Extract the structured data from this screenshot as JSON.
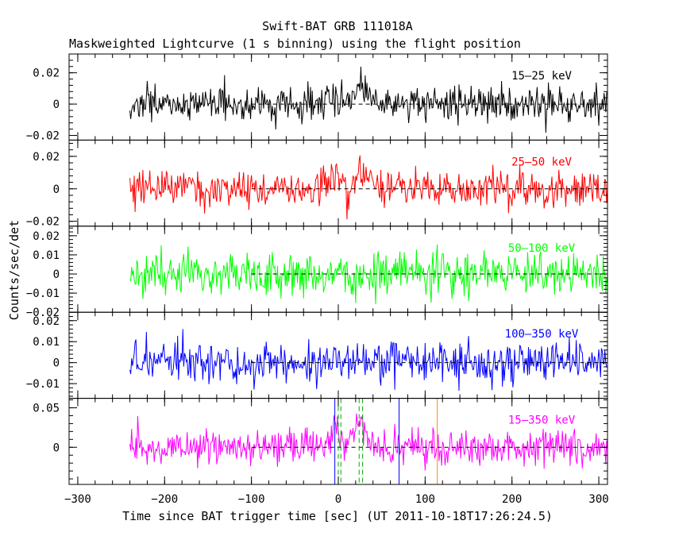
{
  "chart_data": {
    "type": "line",
    "title": "Swift-BAT GRB 111018A",
    "subtitle": "Maskweighted Lightcurve (1 s binning) using the flight position",
    "xlabel": "Time since BAT trigger time [sec] (UT 2011-10-18T17:26:24.5)",
    "ylabel": "Counts/sec/det",
    "xlim": [
      -310,
      310
    ],
    "data_range": [
      -240,
      310
    ],
    "bin_seconds": 1,
    "x_ticks": [
      -300,
      -200,
      -100,
      0,
      100,
      200,
      300
    ],
    "x_tick_labels": [
      "−300",
      "−200",
      "−100",
      "0",
      "100",
      "200",
      "300"
    ],
    "grid": false,
    "panels": [
      {
        "name": "15–25 keV",
        "color": "#000000",
        "ylim": [
          -0.023,
          0.032
        ],
        "y_ticks": [
          0.02,
          0,
          -0.02
        ],
        "y_tick_labels": [
          "0.02",
          "0",
          "−0.02"
        ],
        "noise_sigma": 0.0055,
        "pulses": [
          [
            -5,
            8,
            0.006
          ],
          [
            25,
            6,
            0.012
          ]
        ]
      },
      {
        "name": "25–50 keV",
        "color": "#ff0000",
        "ylim": [
          -0.023,
          0.03
        ],
        "y_ticks": [
          0.02,
          0,
          -0.02
        ],
        "y_tick_labels": [
          "0.02",
          "0",
          "−0.02"
        ],
        "noise_sigma": 0.006,
        "pulses": [
          [
            -3,
            6,
            0.008
          ],
          [
            27,
            7,
            0.011
          ]
        ]
      },
      {
        "name": "50–100 keV",
        "color": "#00ff00",
        "ylim": [
          -0.02,
          0.025
        ],
        "y_ticks": [
          0.02,
          0.01,
          0,
          -0.01,
          -0.02
        ],
        "y_tick_labels": [
          "0.02",
          "0.01",
          "0",
          "−0.01",
          "−0.02"
        ],
        "noise_sigma": 0.0055,
        "pulses": []
      },
      {
        "name": "100–350 keV",
        "color": "#0000ff",
        "ylim": [
          -0.017,
          0.024
        ],
        "y_ticks": [
          0.02,
          0.01,
          0,
          -0.01
        ],
        "y_tick_labels": [
          "0.02",
          "0.01",
          "0",
          "−0.01"
        ],
        "noise_sigma": 0.005,
        "pulses": []
      },
      {
        "name": "15–350 keV",
        "color": "#ff00ff",
        "ylim": [
          -0.047,
          0.062
        ],
        "y_ticks": [
          0.05,
          0
        ],
        "y_tick_labels": [
          "0.05",
          "0"
        ],
        "noise_sigma": 0.011,
        "pulses": [
          [
            -3,
            4,
            0.03
          ],
          [
            25,
            6,
            0.033
          ]
        ]
      }
    ],
    "markers": [
      {
        "x": 0,
        "style": "dashed",
        "color": "#00aa00"
      },
      {
        "x": 3,
        "style": "dashed",
        "color": "#00aa00"
      },
      {
        "x": 24,
        "style": "dashed",
        "color": "#00aa00"
      },
      {
        "x": 28,
        "style": "dashed",
        "color": "#00aa00"
      },
      {
        "x": -4,
        "style": "solid",
        "color": "#0000ff"
      },
      {
        "x": 70,
        "style": "solid",
        "color": "#0000ff"
      },
      {
        "x": 114,
        "style": "solid",
        "color": "#ff8800"
      }
    ]
  }
}
